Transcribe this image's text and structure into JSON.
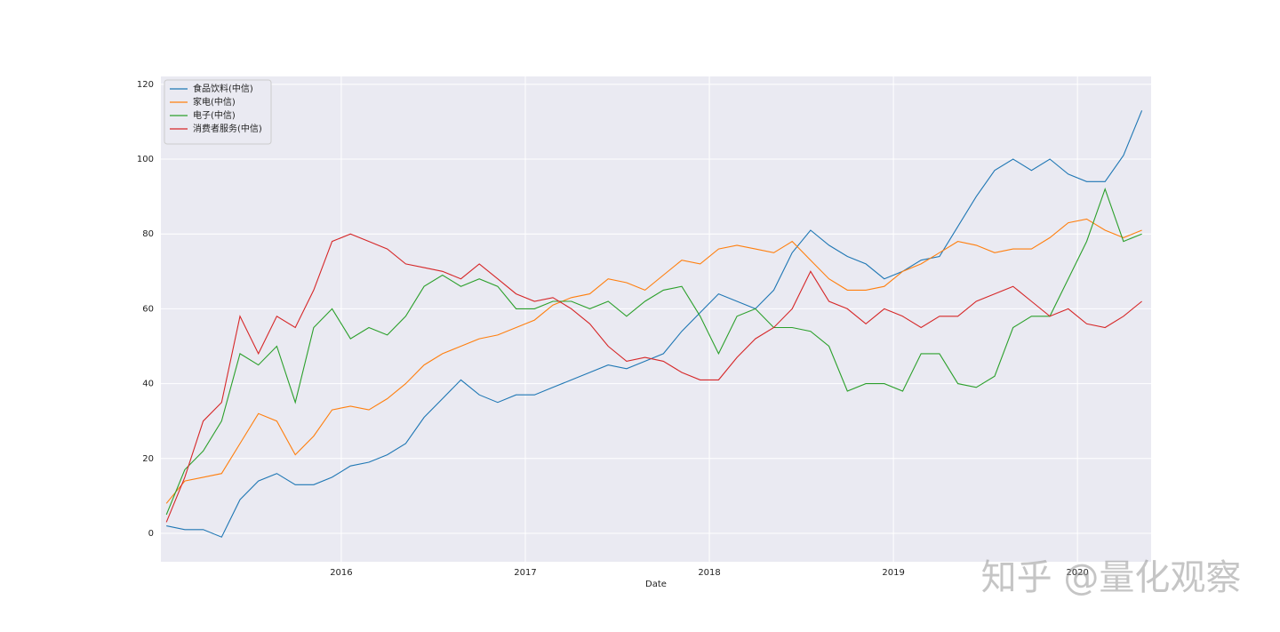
{
  "chart_data": {
    "type": "line",
    "xlabel": "Date",
    "x": [
      2015.05,
      2015.15,
      2015.25,
      2015.35,
      2015.45,
      2015.55,
      2015.65,
      2015.75,
      2015.85,
      2015.95,
      2016.05,
      2016.15,
      2016.25,
      2016.35,
      2016.45,
      2016.55,
      2016.65,
      2016.75,
      2016.85,
      2016.95,
      2017.05,
      2017.15,
      2017.25,
      2017.35,
      2017.45,
      2017.55,
      2017.65,
      2017.75,
      2017.85,
      2017.95,
      2018.05,
      2018.15,
      2018.25,
      2018.35,
      2018.45,
      2018.55,
      2018.65,
      2018.75,
      2018.85,
      2018.95,
      2019.05,
      2019.15,
      2019.25,
      2019.35,
      2019.45,
      2019.55,
      2019.65,
      2019.75,
      2019.85,
      2019.95,
      2020.05,
      2020.15,
      2020.25,
      2020.35
    ],
    "series": [
      {
        "name": "食品饮料(中信)",
        "color": "#1f77b4",
        "values": [
          2,
          1,
          1,
          -1,
          9,
          14,
          16,
          13,
          13,
          15,
          18,
          19,
          21,
          24,
          31,
          36,
          41,
          37,
          35,
          37,
          37,
          39,
          41,
          43,
          45,
          44,
          46,
          48,
          54,
          59,
          64,
          62,
          60,
          65,
          75,
          81,
          77,
          74,
          72,
          68,
          70,
          73,
          74,
          82,
          90,
          97,
          100,
          97,
          100,
          96,
          94,
          94,
          101,
          113
        ]
      },
      {
        "name": "家电(中信)",
        "color": "#ff7f0e",
        "values": [
          8,
          14,
          15,
          16,
          24,
          32,
          30,
          21,
          26,
          33,
          34,
          33,
          36,
          40,
          45,
          48,
          50,
          52,
          53,
          55,
          57,
          61,
          63,
          64,
          68,
          67,
          65,
          69,
          73,
          72,
          76,
          77,
          76,
          75,
          78,
          73,
          68,
          65,
          65,
          66,
          70,
          72,
          75,
          78,
          77,
          75,
          76,
          76,
          79,
          83,
          84,
          81,
          79,
          81
        ]
      },
      {
        "name": "电子(中信)",
        "color": "#2ca02c",
        "values": [
          5,
          17,
          22,
          30,
          48,
          45,
          50,
          35,
          55,
          60,
          52,
          55,
          53,
          58,
          66,
          69,
          66,
          68,
          66,
          60,
          60,
          62,
          62,
          60,
          62,
          58,
          62,
          65,
          66,
          58,
          48,
          58,
          60,
          55,
          55,
          54,
          50,
          38,
          40,
          40,
          38,
          48,
          48,
          40,
          39,
          42,
          55,
          58,
          58,
          68,
          78,
          92,
          78,
          80
        ]
      },
      {
        "name": "消费者服务(中信)",
        "color": "#d62728",
        "values": [
          3,
          15,
          30,
          35,
          58,
          48,
          58,
          55,
          65,
          78,
          80,
          78,
          76,
          72,
          71,
          70,
          68,
          72,
          68,
          64,
          62,
          63,
          60,
          56,
          50,
          46,
          47,
          46,
          43,
          41,
          41,
          47,
          52,
          55,
          60,
          70,
          62,
          60,
          56,
          60,
          58,
          55,
          58,
          58,
          62,
          64,
          66,
          62,
          58,
          60,
          56,
          55,
          58,
          62
        ]
      }
    ],
    "xlim": [
      2015.02,
      2020.4
    ],
    "xticks": [
      2016,
      2017,
      2018,
      2019,
      2020
    ],
    "ylim": [
      -7.6,
      122.1
    ],
    "yticks": [
      0,
      20,
      40,
      60,
      80,
      100,
      120
    ],
    "grid": true,
    "legend": "upper left",
    "watermark": "知乎 @量化观察"
  }
}
